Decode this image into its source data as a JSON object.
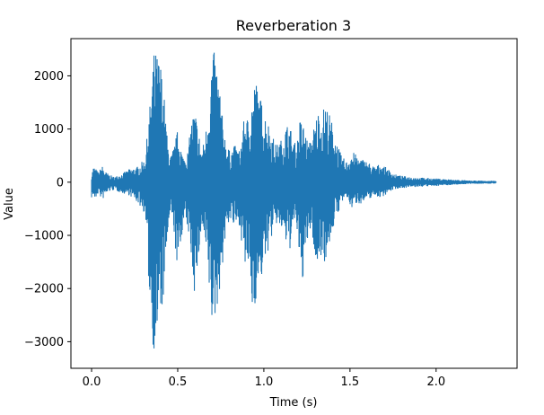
{
  "colors": {
    "series": "#1f77b4",
    "axis": "#000000",
    "background": "#ffffff"
  },
  "chart_data": {
    "type": "line",
    "title": "Reverberation 3",
    "xlabel": "Time (s)",
    "ylabel": "Value",
    "xlim": [
      -0.12,
      2.47
    ],
    "ylim": [
      -3500,
      2700
    ],
    "grid": false,
    "legend": "none",
    "x_ticks": [
      0.0,
      0.5,
      1.0,
      1.5,
      2.0
    ],
    "x_tick_labels": [
      "0.0",
      "0.5",
      "1.0",
      "1.5",
      "2.0"
    ],
    "y_ticks": [
      -3000,
      -2000,
      -1000,
      0,
      1000,
      2000
    ],
    "y_tick_labels": [
      "−3000",
      "−2000",
      "−1000",
      "0",
      "1000",
      "2000"
    ],
    "series": [
      {
        "x_start": 0.0,
        "x_end": 2.35,
        "envelope": {
          "t": [
            0.0,
            0.01,
            0.02,
            0.04,
            0.06,
            0.08,
            0.1,
            0.13,
            0.17,
            0.22,
            0.27,
            0.31,
            0.34,
            0.36,
            0.38,
            0.4,
            0.42,
            0.44,
            0.46,
            0.48,
            0.5,
            0.53,
            0.56,
            0.58,
            0.6,
            0.62,
            0.64,
            0.66,
            0.68,
            0.7,
            0.72,
            0.74,
            0.76,
            0.78,
            0.8,
            0.83,
            0.86,
            0.89,
            0.91,
            0.93,
            0.95,
            0.97,
            0.99,
            1.01,
            1.04,
            1.07,
            1.1,
            1.13,
            1.15,
            1.17,
            1.19,
            1.21,
            1.23,
            1.26,
            1.28,
            1.3,
            1.32,
            1.34,
            1.35,
            1.36,
            1.38,
            1.4,
            1.42,
            1.45,
            1.48,
            1.51,
            1.54,
            1.57,
            1.6,
            1.64,
            1.68,
            1.72,
            1.76,
            1.8,
            1.85,
            1.9,
            1.95,
            2.0,
            2.05,
            2.1,
            2.15,
            2.2,
            2.25,
            2.3,
            2.33,
            2.35
          ],
          "upper": [
            150,
            300,
            280,
            180,
            320,
            200,
            150,
            100,
            150,
            250,
            300,
            450,
            1500,
            2450,
            2450,
            2300,
            1700,
            800,
            500,
            700,
            1000,
            500,
            600,
            1200,
            1400,
            1000,
            600,
            900,
            1500,
            2500,
            2400,
            2000,
            1200,
            800,
            600,
            700,
            600,
            1300,
            1200,
            1600,
            2000,
            1700,
            1500,
            1300,
            1000,
            700,
            800,
            1100,
            1100,
            800,
            700,
            1200,
            1100,
            700,
            900,
            1200,
            1400,
            1200,
            1500,
            1500,
            1300,
            1100,
            800,
            500,
            400,
            600,
            500,
            450,
            400,
            300,
            350,
            250,
            150,
            120,
            100,
            90,
            80,
            70,
            60,
            50,
            40,
            30,
            30,
            25,
            30,
            20
          ],
          "lower": [
            -300,
            -250,
            -350,
            -200,
            -350,
            -250,
            -180,
            -150,
            -200,
            -250,
            -400,
            -600,
            -2400,
            -3200,
            -3000,
            -2600,
            -2200,
            -1100,
            -600,
            -1000,
            -1800,
            -800,
            -900,
            -1500,
            -2200,
            -1500,
            -900,
            -1300,
            -2000,
            -2800,
            -2600,
            -2100,
            -1600,
            -1000,
            -700,
            -900,
            -800,
            -1700,
            -1600,
            -2500,
            -2300,
            -2000,
            -1800,
            -1500,
            -1100,
            -800,
            -900,
            -1200,
            -1300,
            -900,
            -800,
            -1900,
            -1800,
            -1000,
            -900,
            -1700,
            -1500,
            -1300,
            -1500,
            -1500,
            -1200,
            -900,
            -700,
            -400,
            -300,
            -500,
            -400,
            -400,
            -350,
            -250,
            -300,
            -200,
            -130,
            -110,
            -100,
            -90,
            -80,
            -70,
            -60,
            -50,
            -40,
            -35,
            -30,
            -30,
            -30,
            -20
          ]
        }
      }
    ]
  }
}
